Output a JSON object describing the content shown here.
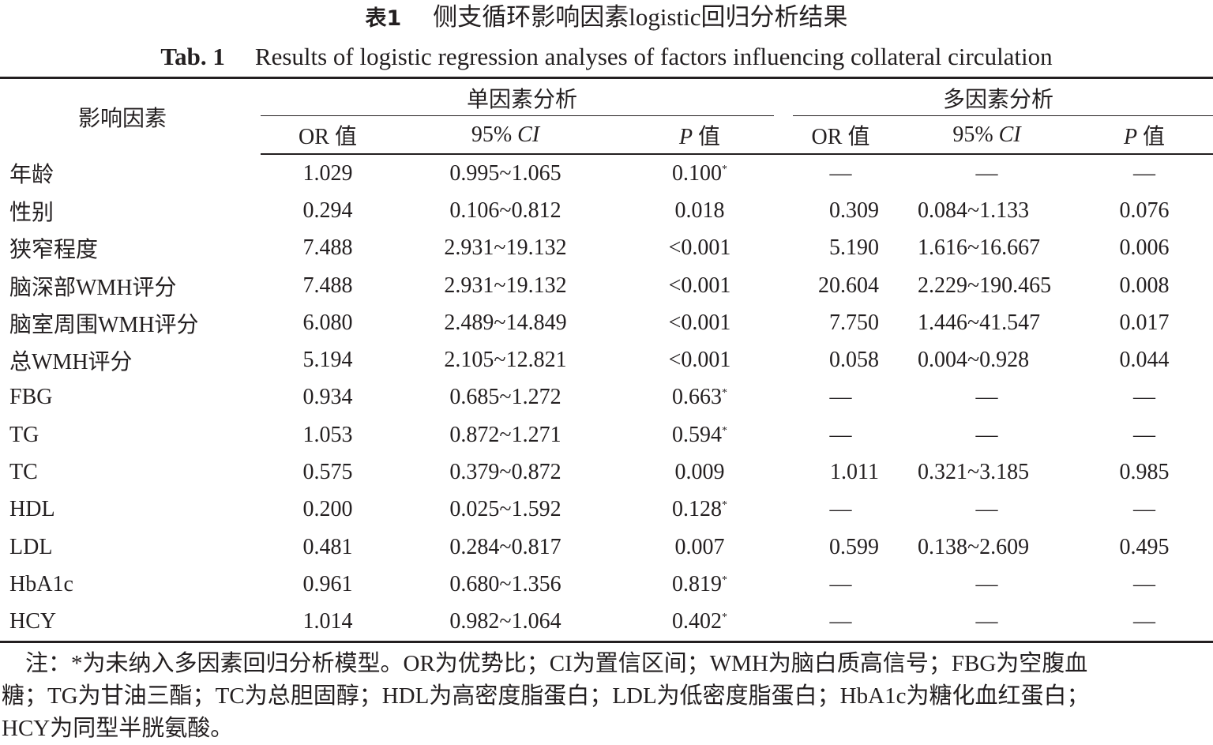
{
  "title": {
    "number": "表1",
    "text": "侧支循环影响因素logistic回归分析结果"
  },
  "subtitle": {
    "number": "Tab. 1",
    "text": "Results of logistic regression analyses of factors influencing collateral circulation"
  },
  "table": {
    "factor_header": "影响因素",
    "uni_header": "单因素分析",
    "multi_header": "多因素分析",
    "sub_headers": {
      "or": "OR 值",
      "ci_prefix": "95% ",
      "ci": "CI",
      "p": "P",
      "p_suffix": " 值"
    },
    "rows": [
      {
        "factor": "年龄",
        "or": "1.029",
        "ci": "0.995~1.065",
        "p": "0.100",
        "star": "*",
        "mor": "—",
        "mci": "—",
        "mp": "—"
      },
      {
        "factor": "性别",
        "or": "0.294",
        "ci": "0.106~0.812",
        "p": "0.018",
        "star": "",
        "mor": "0.309",
        "mci": "0.084~1.133",
        "mp": "0.076"
      },
      {
        "factor": "狭窄程度",
        "or": "7.488",
        "ci": "2.931~19.132",
        "p": "<0.001",
        "star": "",
        "mor": "5.190",
        "mci": "1.616~16.667",
        "mp": "0.006"
      },
      {
        "factor": "脑深部WMH评分",
        "or": "7.488",
        "ci": "2.931~19.132",
        "p": "<0.001",
        "star": "",
        "mor": "20.604",
        "mci": "2.229~190.465",
        "mp": "0.008"
      },
      {
        "factor": "脑室周围WMH评分",
        "or": "6.080",
        "ci": "2.489~14.849",
        "p": "<0.001",
        "star": "",
        "mor": "7.750",
        "mci": "1.446~41.547",
        "mp": "0.017"
      },
      {
        "factor": "总WMH评分",
        "or": "5.194",
        "ci": "2.105~12.821",
        "p": "<0.001",
        "star": "",
        "mor": "0.058",
        "mci": "0.004~0.928",
        "mp": "0.044"
      },
      {
        "factor": "FBG",
        "or": "0.934",
        "ci": "0.685~1.272",
        "p": "0.663",
        "star": "*",
        "mor": "—",
        "mci": "—",
        "mp": "—"
      },
      {
        "factor": "TG",
        "or": "1.053",
        "ci": "0.872~1.271",
        "p": "0.594",
        "star": "*",
        "mor": "—",
        "mci": "—",
        "mp": "—"
      },
      {
        "factor": "TC",
        "or": "0.575",
        "ci": "0.379~0.872",
        "p": "0.009",
        "star": "",
        "mor": "1.011",
        "mci": "0.321~3.185",
        "mp": "0.985"
      },
      {
        "factor": "HDL",
        "or": "0.200",
        "ci": "0.025~1.592",
        "p": "0.128",
        "star": "*",
        "mor": "—",
        "mci": "—",
        "mp": "—"
      },
      {
        "factor": "LDL",
        "or": "0.481",
        "ci": "0.284~0.817",
        "p": "0.007",
        "star": "",
        "mor": "0.599",
        "mci": "0.138~2.609",
        "mp": "0.495"
      },
      {
        "factor": "HbA1c",
        "or": "0.961",
        "ci": "0.680~1.356",
        "p": "0.819",
        "star": "*",
        "mor": "—",
        "mci": "—",
        "mp": "—"
      },
      {
        "factor": "HCY",
        "or": "1.014",
        "ci": "0.982~1.064",
        "p": "0.402",
        "star": "*",
        "mor": "—",
        "mci": "—",
        "mp": "—"
      }
    ]
  },
  "note": {
    "line1": "注：*为未纳入多因素回归分析模型。OR为优势比；CI为置信区间；WMH为脑白质高信号；FBG为空腹血",
    "line2": "糖；TG为甘油三酯；TC为总胆固醇；HDL为高密度脂蛋白；LDL为低密度脂蛋白；HbA1c为糖化血红蛋白；",
    "line3": "HCY为同型半胱氨酸。"
  }
}
